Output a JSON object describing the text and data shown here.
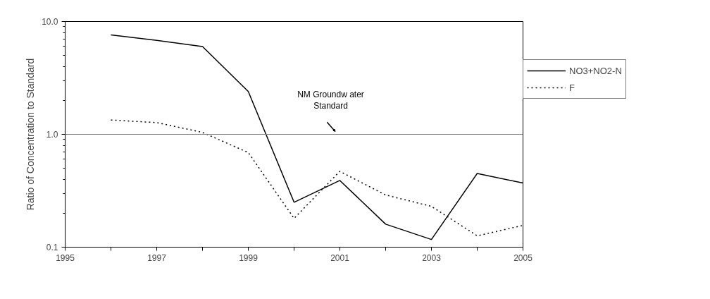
{
  "chart_data": {
    "type": "line",
    "ylabel": "Ratio of Concentration to Standard",
    "x": [
      1996,
      1997,
      1998,
      1999,
      2000,
      2001,
      2002,
      2003,
      2004,
      2005
    ],
    "series": [
      {
        "name": "NO3+NO2-N",
        "color": "#000000",
        "line_style": "solid",
        "values": [
          7.6,
          6.8,
          6.0,
          2.4,
          0.25,
          0.39,
          0.16,
          0.117,
          0.45,
          0.37
        ]
      },
      {
        "name": "F",
        "color": "#000000",
        "line_style": "dotted",
        "values": [
          1.34,
          1.27,
          1.04,
          0.69,
          0.18,
          0.47,
          0.29,
          0.23,
          0.126,
          0.156
        ]
      }
    ],
    "log": "y",
    "ylim": [
      0.1,
      10
    ],
    "yticks": [
      {
        "value": 0.1,
        "label": "0.1"
      },
      {
        "value": 1,
        "label": "1.0"
      },
      {
        "value": 10,
        "label": "10.0"
      }
    ],
    "xlim": [
      1995,
      2005
    ],
    "xticks": [
      1995,
      {
        "value": 1996,
        "label": null
      },
      1997,
      {
        "value": 1998,
        "label": null
      },
      1999,
      {
        "value": 2000,
        "label": null
      },
      2001,
      {
        "value": 2002,
        "label": null
      },
      2003,
      {
        "value": 2004,
        "label": null
      },
      2005
    ],
    "ref_lines": [
      {
        "axis": "y",
        "value": 1,
        "label": "NM Groundw ater\nStandard",
        "color": "#808080"
      }
    ],
    "grid": false,
    "legend": "right",
    "marker": "none"
  }
}
